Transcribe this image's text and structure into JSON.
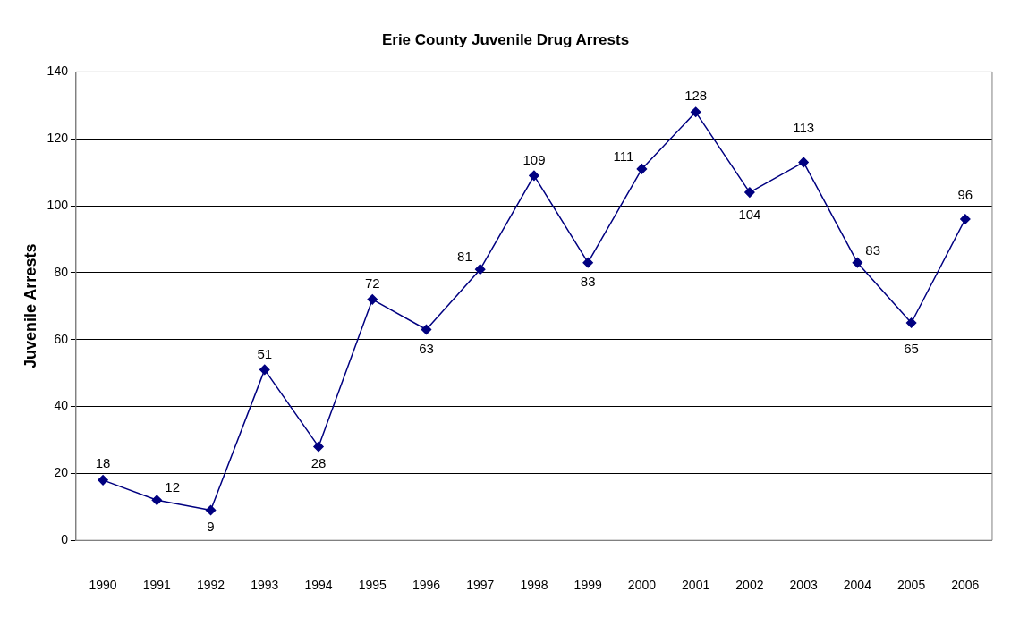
{
  "chart_data": {
    "type": "line",
    "title": "Erie County Juvenile Drug Arrests",
    "ylabel": "Juvenile Arrests",
    "categories": [
      "1990",
      "1991",
      "1992",
      "1993",
      "1994",
      "1995",
      "1996",
      "1997",
      "1998",
      "1999",
      "2000",
      "2001",
      "2002",
      "2003",
      "2004",
      "2005",
      "2006"
    ],
    "series": [
      {
        "color": "#000080",
        "values": [
          18,
          12,
          9,
          51,
          28,
          72,
          63,
          81,
          109,
          83,
          111,
          128,
          104,
          113,
          83,
          65,
          96
        ]
      }
    ],
    "ylim": [
      0,
      140
    ],
    "yticks": [
      0,
      20,
      40,
      60,
      80,
      100,
      120,
      140
    ],
    "grid": "y",
    "legend": false,
    "marker": "diamond",
    "line_style": "solid",
    "data_labels": true
  }
}
